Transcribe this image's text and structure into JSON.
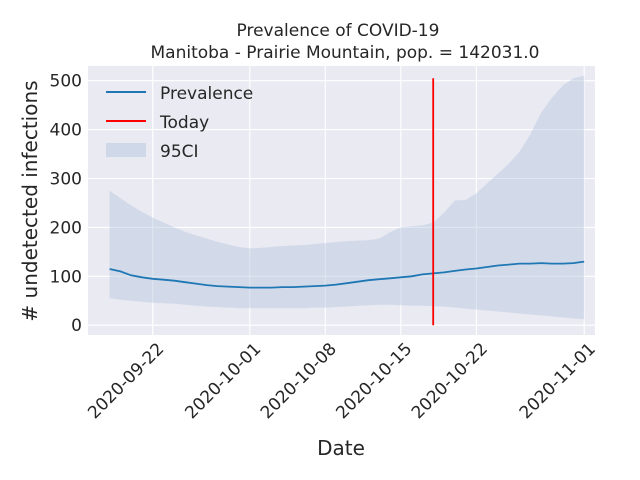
{
  "chart_data": {
    "type": "line",
    "title": "Prevalence of COVID-19",
    "subtitle": "Manitoba - Prairie Mountain, pop. = 142031.0",
    "xlabel": "Date",
    "ylabel": "# undetected infections",
    "xlim": [
      "2020-09-16",
      "2020-11-02"
    ],
    "ylim": [
      -20,
      530
    ],
    "x_ticks": [
      "2020-09-22",
      "2020-10-01",
      "2020-10-08",
      "2020-10-15",
      "2020-10-22",
      "2020-11-01"
    ],
    "y_ticks": [
      0,
      100,
      200,
      300,
      400,
      500
    ],
    "grid": true,
    "legend_position": "upper-left",
    "series": [
      {
        "name": "Prevalence",
        "color": "#1f77b4",
        "x": [
          "2020-09-18",
          "2020-09-19",
          "2020-09-20",
          "2020-09-21",
          "2020-09-22",
          "2020-09-23",
          "2020-09-24",
          "2020-09-25",
          "2020-09-26",
          "2020-09-27",
          "2020-09-28",
          "2020-09-29",
          "2020-09-30",
          "2020-10-01",
          "2020-10-02",
          "2020-10-03",
          "2020-10-04",
          "2020-10-05",
          "2020-10-06",
          "2020-10-07",
          "2020-10-08",
          "2020-10-09",
          "2020-10-10",
          "2020-10-11",
          "2020-10-12",
          "2020-10-13",
          "2020-10-14",
          "2020-10-15",
          "2020-10-16",
          "2020-10-17",
          "2020-10-18",
          "2020-10-19",
          "2020-10-20",
          "2020-10-21",
          "2020-10-22",
          "2020-10-23",
          "2020-10-24",
          "2020-10-25",
          "2020-10-26",
          "2020-10-27",
          "2020-10-28",
          "2020-10-29",
          "2020-10-30",
          "2020-10-31",
          "2020-11-01"
        ],
        "y": [
          115,
          110,
          102,
          98,
          95,
          93,
          91,
          88,
          85,
          82,
          80,
          79,
          78,
          77,
          77,
          77,
          78,
          78,
          79,
          80,
          81,
          83,
          86,
          89,
          92,
          94,
          96,
          98,
          100,
          104,
          106,
          108,
          111,
          114,
          116,
          119,
          122,
          124,
          126,
          126,
          127,
          126,
          126,
          127,
          130
        ]
      },
      {
        "name": "95CI",
        "color": "#b0c4de",
        "type": "area",
        "x": [
          "2020-09-18",
          "2020-09-19",
          "2020-09-20",
          "2020-09-21",
          "2020-09-22",
          "2020-09-23",
          "2020-09-24",
          "2020-09-25",
          "2020-09-26",
          "2020-09-27",
          "2020-09-28",
          "2020-09-29",
          "2020-09-30",
          "2020-10-01",
          "2020-10-02",
          "2020-10-03",
          "2020-10-04",
          "2020-10-05",
          "2020-10-06",
          "2020-10-07",
          "2020-10-08",
          "2020-10-09",
          "2020-10-10",
          "2020-10-11",
          "2020-10-12",
          "2020-10-13",
          "2020-10-14",
          "2020-10-15",
          "2020-10-16",
          "2020-10-17",
          "2020-10-18",
          "2020-10-19",
          "2020-10-20",
          "2020-10-21",
          "2020-10-22",
          "2020-10-23",
          "2020-10-24",
          "2020-10-25",
          "2020-10-26",
          "2020-10-27",
          "2020-10-28",
          "2020-10-29",
          "2020-10-30",
          "2020-10-31",
          "2020-11-01"
        ],
        "lower": [
          55,
          52,
          50,
          48,
          46,
          45,
          44,
          42,
          40,
          38,
          37,
          36,
          35,
          35,
          35,
          35,
          35,
          35,
          35,
          36,
          36,
          37,
          38,
          40,
          41,
          42,
          42,
          41,
          40,
          40,
          39,
          38,
          36,
          34,
          32,
          30,
          28,
          26,
          24,
          22,
          20,
          18,
          16,
          14,
          12
        ],
        "upper": [
          275,
          260,
          245,
          232,
          220,
          210,
          200,
          191,
          184,
          177,
          171,
          165,
          160,
          157,
          158,
          160,
          162,
          163,
          164,
          166,
          168,
          170,
          172,
          173,
          174,
          177,
          190,
          200,
          202,
          204,
          210,
          230,
          255,
          256,
          270,
          290,
          310,
          330,
          355,
          390,
          435,
          465,
          490,
          505,
          510
        ]
      }
    ],
    "annotations": [
      {
        "name": "Today",
        "type": "vline",
        "x": "2020-10-18",
        "y_range": [
          0,
          505
        ],
        "color": "#ff0000"
      }
    ]
  }
}
